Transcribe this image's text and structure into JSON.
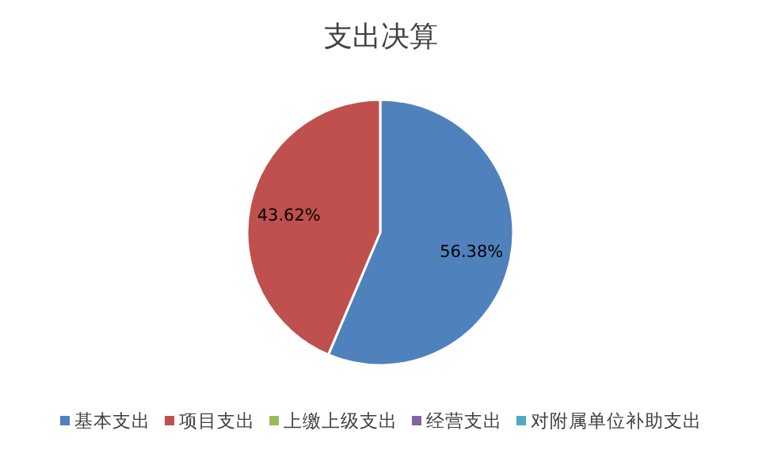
{
  "chart_data": {
    "type": "pie",
    "title": "支出决算",
    "categories": [
      "基本支出",
      "项目支出",
      "上缴上级支出",
      "经营支出",
      "对附属单位补助支出"
    ],
    "values": [
      56.38,
      43.62,
      0,
      0,
      0
    ],
    "colors": [
      "#4f81bd",
      "#c0504d",
      "#9bbb59",
      "#8064a2",
      "#4bacc6"
    ],
    "value_labels": [
      "56.38%",
      "43.62%",
      null,
      null,
      null
    ],
    "legend": "bottom"
  }
}
